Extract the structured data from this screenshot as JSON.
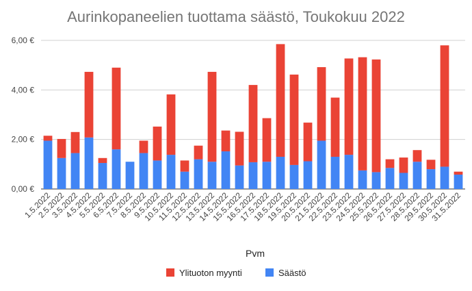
{
  "chart_data": {
    "type": "bar",
    "stacked": true,
    "title": "Aurinkopaneelien tuottama säästö, Toukokuu 2022",
    "xlabel": "Pvm",
    "ylabel": "",
    "ylim": [
      0,
      6
    ],
    "y_ticks": [
      0,
      2,
      4,
      6
    ],
    "y_tick_labels": [
      "0,00 €",
      "2,00 €",
      "4,00 €",
      "6,00 €"
    ],
    "grid": true,
    "legend_position": "bottom",
    "categories": [
      "1.5.2022",
      "2.5.2022",
      "3.5.2022",
      "4.5.2022",
      "5.5.2022",
      "6.5.2022",
      "7.5.2022",
      "8.5.2022",
      "9.5.2022",
      "10.5.2022",
      "11.5.2022",
      "12.5.2022",
      "13.5.2022",
      "14.5.2022",
      "15.5.2022",
      "16.5.2022",
      "17.5.2022",
      "18.5.2022",
      "19.5.2022",
      "20.5.2022",
      "21.5.2022",
      "22.5.2022",
      "23.5.2022",
      "24.5.2022",
      "25.5.2022",
      "26.5.2022",
      "27.5.2022",
      "28.5.2022",
      "29.5.2022",
      "30.5.2022",
      "31.5.2022"
    ],
    "series": [
      {
        "name": "Säästö",
        "color": "#4285f4",
        "values": [
          1.95,
          1.25,
          1.45,
          2.08,
          1.05,
          1.6,
          1.1,
          1.45,
          1.15,
          1.38,
          0.7,
          1.2,
          1.1,
          1.52,
          0.95,
          1.08,
          1.1,
          1.3,
          0.97,
          1.12,
          1.95,
          1.3,
          1.38,
          0.75,
          0.68,
          0.85,
          0.65,
          1.1,
          0.8,
          0.9,
          0.58
        ]
      },
      {
        "name": "Ylituoton myynti",
        "color": "#ea4335",
        "values": [
          0.2,
          0.77,
          0.85,
          2.65,
          0.2,
          3.3,
          0.0,
          0.5,
          1.37,
          2.44,
          0.45,
          0.55,
          3.63,
          0.84,
          1.36,
          3.12,
          1.76,
          4.55,
          3.65,
          1.56,
          2.97,
          2.39,
          3.89,
          4.57,
          4.55,
          0.35,
          0.62,
          0.47,
          0.38,
          4.9,
          0.12
        ]
      }
    ]
  }
}
